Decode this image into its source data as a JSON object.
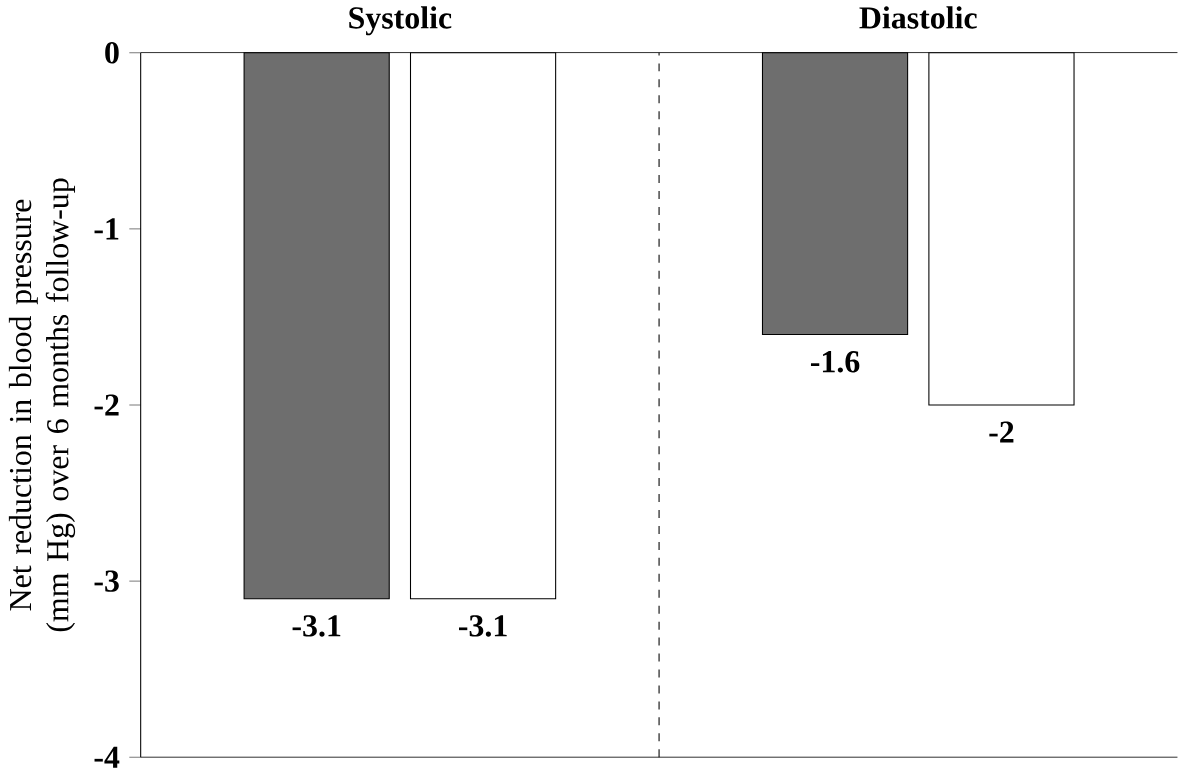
{
  "chart_data": {
    "type": "bar",
    "ylabel": "Net reduction in blood pressure (mm Hg) over 6 months follow-up",
    "categories": [
      "Systolic",
      "Diastolic"
    ],
    "series": [
      {
        "color": "#6e6e6e",
        "values": [
          -3.1,
          -1.6
        ]
      },
      {
        "color": "#ffffff",
        "values": [
          -3.1,
          -2
        ]
      }
    ],
    "ylim": [
      -4,
      0
    ],
    "yticks": [
      -4,
      -3,
      -2,
      -1,
      0
    ],
    "data_labels": true
  }
}
